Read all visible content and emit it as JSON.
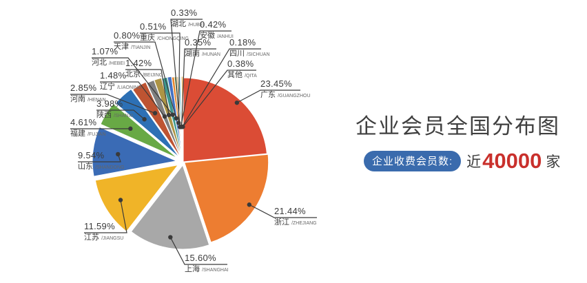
{
  "title": "企业会员全国分布图",
  "badge": {
    "label": "企业收费会员数:",
    "prefix": "近",
    "number": "40000",
    "suffix": "家"
  },
  "colors": {
    "badge_pill": "#3A6BAD",
    "badge_number": "#C9302C",
    "title_text": "#3F3F3F",
    "leader_line": "#3A3A3A"
  },
  "chart_data": {
    "type": "pie",
    "title": "企业会员全国分布图",
    "value_suffix": "%",
    "legend": "none",
    "series": [
      {
        "name": "广东",
        "pinyin": "GUANGZHOU",
        "value": 23.45,
        "color": "#DB4C35"
      },
      {
        "name": "浙江",
        "pinyin": "ZHEJIANG",
        "value": 21.44,
        "color": "#ED7D31"
      },
      {
        "name": "上海",
        "pinyin": "SHANGHAI",
        "value": 15.6,
        "color": "#A8A8A8"
      },
      {
        "name": "江苏",
        "pinyin": "JIANGSU",
        "value": 11.59,
        "color": "#F0B428"
      },
      {
        "name": "山东",
        "pinyin": "SHANDONG",
        "value": 9.54,
        "color": "#3A6BB5"
      },
      {
        "name": "福建",
        "pinyin": "FUJIAN",
        "value": 4.61,
        "color": "#68A945"
      },
      {
        "name": "陕西",
        "pinyin": "SHANXI",
        "value": 3.98,
        "color": "#2D70B5"
      },
      {
        "name": "河南",
        "pinyin": "HENAN",
        "value": 2.85,
        "color": "#BE5432"
      },
      {
        "name": "辽宁",
        "pinyin": "LIAONING",
        "value": 1.48,
        "color": "#7F7F7F"
      },
      {
        "name": "北京",
        "pinyin": "BEIJING",
        "value": 1.42,
        "color": "#AD9445"
      },
      {
        "name": "河北",
        "pinyin": "HEBEI",
        "value": 1.07,
        "color": "#3E9890"
      },
      {
        "name": "天津",
        "pinyin": "TIANJIN",
        "value": 0.8,
        "color": "#4472C4"
      },
      {
        "name": "重庆",
        "pinyin": "CHONGQING",
        "value": 0.51,
        "color": "#E8852C"
      },
      {
        "name": "湖北",
        "pinyin": "HUBEI",
        "value": 0.33,
        "color": "#6FA84F"
      },
      {
        "name": "安徽",
        "pinyin": "ANHUI",
        "value": 0.42,
        "color": "#D8C39A"
      },
      {
        "name": "湖南",
        "pinyin": "HUNAN",
        "value": 0.35,
        "color": "#57B7C9"
      },
      {
        "name": "四川",
        "pinyin": "SICHUAN",
        "value": 0.18,
        "color": "#9DC3E6"
      },
      {
        "name": "其他",
        "pinyin": "QITA",
        "value": 0.38,
        "color": "#F2C57C"
      }
    ]
  }
}
